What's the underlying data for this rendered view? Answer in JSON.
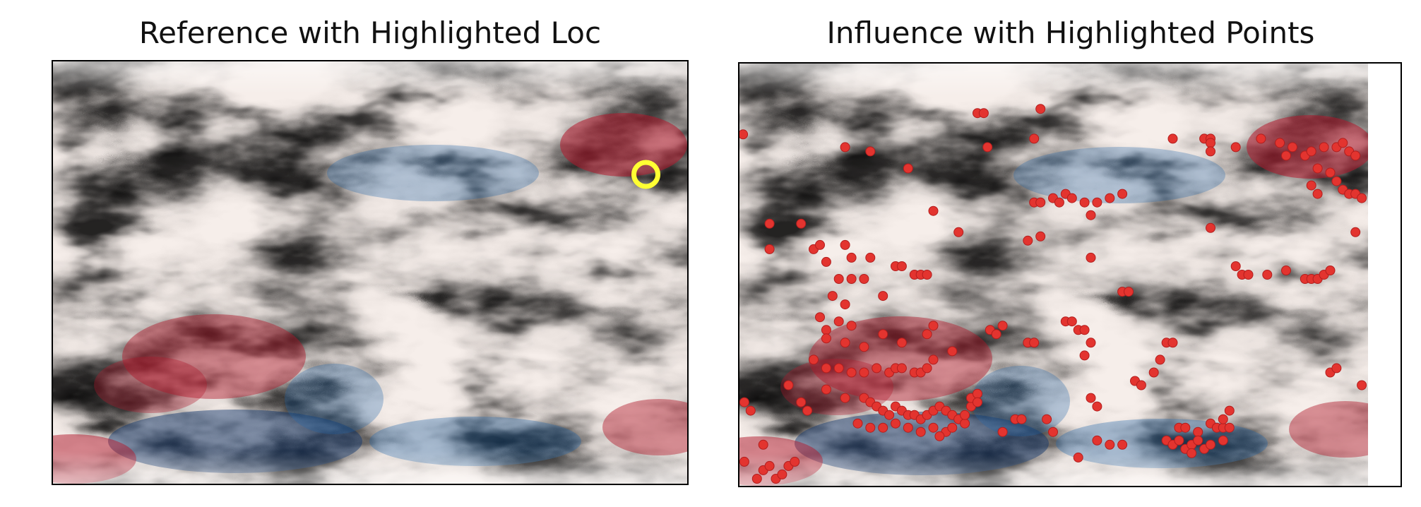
{
  "chart_data": [
    {
      "type": "heatmap",
      "title": "Reference with Highlighted Loc",
      "colormap": "RdBu_r",
      "axes_visible": false,
      "grid": false,
      "highlight": {
        "marker": "ring",
        "color": "#ffff33",
        "x": 0.935,
        "y": 0.27
      }
    },
    {
      "type": "scatter",
      "title": "Influence with Highlighted Points",
      "background": "heatmap RdBu_r",
      "axes_visible": false,
      "grid": false,
      "point_color": "#e3342f",
      "points": [
        [
          0.008,
          0.17
        ],
        [
          0.17,
          0.2
        ],
        [
          0.21,
          0.21
        ],
        [
          0.38,
          0.12
        ],
        [
          0.39,
          0.12
        ],
        [
          0.396,
          0.2
        ],
        [
          0.48,
          0.11
        ],
        [
          0.47,
          0.18
        ],
        [
          0.27,
          0.25
        ],
        [
          0.69,
          0.18
        ],
        [
          0.74,
          0.18
        ],
        [
          0.75,
          0.18
        ],
        [
          0.75,
          0.19
        ],
        [
          0.75,
          0.21
        ],
        [
          0.79,
          0.2
        ],
        [
          0.83,
          0.18
        ],
        [
          0.86,
          0.19
        ],
        [
          0.87,
          0.22
        ],
        [
          0.88,
          0.2
        ],
        [
          0.9,
          0.22
        ],
        [
          0.91,
          0.21
        ],
        [
          0.93,
          0.2
        ],
        [
          0.95,
          0.2
        ],
        [
          0.96,
          0.19
        ],
        [
          0.97,
          0.21
        ],
        [
          0.98,
          0.22
        ],
        [
          0.92,
          0.25
        ],
        [
          0.94,
          0.26
        ],
        [
          0.95,
          0.28
        ],
        [
          0.96,
          0.3
        ],
        [
          0.97,
          0.31
        ],
        [
          0.98,
          0.31
        ],
        [
          0.99,
          0.32
        ],
        [
          0.91,
          0.29
        ],
        [
          0.92,
          0.31
        ],
        [
          0.98,
          0.4
        ],
        [
          0.1,
          0.38
        ],
        [
          0.31,
          0.35
        ],
        [
          0.35,
          0.4
        ],
        [
          0.05,
          0.38
        ],
        [
          0.47,
          0.33
        ],
        [
          0.48,
          0.33
        ],
        [
          0.5,
          0.32
        ],
        [
          0.51,
          0.33
        ],
        [
          0.52,
          0.31
        ],
        [
          0.53,
          0.32
        ],
        [
          0.55,
          0.33
        ],
        [
          0.57,
          0.33
        ],
        [
          0.59,
          0.32
        ],
        [
          0.61,
          0.31
        ],
        [
          0.56,
          0.36
        ],
        [
          0.48,
          0.41
        ],
        [
          0.46,
          0.42
        ],
        [
          0.56,
          0.46
        ],
        [
          0.75,
          0.39
        ],
        [
          0.05,
          0.44
        ],
        [
          0.12,
          0.44
        ],
        [
          0.13,
          0.43
        ],
        [
          0.17,
          0.43
        ],
        [
          0.18,
          0.46
        ],
        [
          0.21,
          0.46
        ],
        [
          0.25,
          0.48
        ],
        [
          0.26,
          0.48
        ],
        [
          0.28,
          0.5
        ],
        [
          0.29,
          0.5
        ],
        [
          0.3,
          0.5
        ],
        [
          0.14,
          0.47
        ],
        [
          0.16,
          0.51
        ],
        [
          0.18,
          0.51
        ],
        [
          0.2,
          0.51
        ],
        [
          0.15,
          0.55
        ],
        [
          0.17,
          0.57
        ],
        [
          0.23,
          0.55
        ],
        [
          0.61,
          0.54
        ],
        [
          0.62,
          0.54
        ],
        [
          0.79,
          0.48
        ],
        [
          0.8,
          0.5
        ],
        [
          0.81,
          0.5
        ],
        [
          0.84,
          0.5
        ],
        [
          0.87,
          0.49
        ],
        [
          0.9,
          0.51
        ],
        [
          0.91,
          0.51
        ],
        [
          0.92,
          0.51
        ],
        [
          0.93,
          0.5
        ],
        [
          0.94,
          0.49
        ],
        [
          0.13,
          0.6
        ],
        [
          0.14,
          0.63
        ],
        [
          0.16,
          0.61
        ],
        [
          0.18,
          0.62
        ],
        [
          0.14,
          0.65
        ],
        [
          0.17,
          0.66
        ],
        [
          0.2,
          0.67
        ],
        [
          0.23,
          0.64
        ],
        [
          0.26,
          0.66
        ],
        [
          0.3,
          0.64
        ],
        [
          0.31,
          0.62
        ],
        [
          0.12,
          0.7
        ],
        [
          0.14,
          0.72
        ],
        [
          0.16,
          0.72
        ],
        [
          0.18,
          0.73
        ],
        [
          0.2,
          0.73
        ],
        [
          0.22,
          0.72
        ],
        [
          0.24,
          0.73
        ],
        [
          0.25,
          0.72
        ],
        [
          0.26,
          0.72
        ],
        [
          0.28,
          0.73
        ],
        [
          0.29,
          0.73
        ],
        [
          0.3,
          0.72
        ],
        [
          0.31,
          0.7
        ],
        [
          0.4,
          0.63
        ],
        [
          0.41,
          0.64
        ],
        [
          0.42,
          0.62
        ],
        [
          0.46,
          0.66
        ],
        [
          0.47,
          0.66
        ],
        [
          0.52,
          0.61
        ],
        [
          0.53,
          0.61
        ],
        [
          0.54,
          0.63
        ],
        [
          0.55,
          0.63
        ],
        [
          0.56,
          0.66
        ],
        [
          0.55,
          0.69
        ],
        [
          0.34,
          0.68
        ],
        [
          0.68,
          0.66
        ],
        [
          0.69,
          0.66
        ],
        [
          0.67,
          0.7
        ],
        [
          0.66,
          0.73
        ],
        [
          0.63,
          0.75
        ],
        [
          0.64,
          0.76
        ],
        [
          0.56,
          0.79
        ],
        [
          0.57,
          0.81
        ],
        [
          0.94,
          0.73
        ],
        [
          0.95,
          0.72
        ],
        [
          0.99,
          0.76
        ],
        [
          0.01,
          0.8
        ],
        [
          0.02,
          0.82
        ],
        [
          0.1,
          0.8
        ],
        [
          0.11,
          0.82
        ],
        [
          0.14,
          0.77
        ],
        [
          0.17,
          0.79
        ],
        [
          0.08,
          0.76
        ],
        [
          0.2,
          0.79
        ],
        [
          0.21,
          0.8
        ],
        [
          0.22,
          0.81
        ],
        [
          0.23,
          0.82
        ],
        [
          0.24,
          0.83
        ],
        [
          0.25,
          0.81
        ],
        [
          0.26,
          0.82
        ],
        [
          0.27,
          0.83
        ],
        [
          0.28,
          0.83
        ],
        [
          0.29,
          0.84
        ],
        [
          0.3,
          0.83
        ],
        [
          0.31,
          0.82
        ],
        [
          0.32,
          0.81
        ],
        [
          0.33,
          0.82
        ],
        [
          0.34,
          0.83
        ],
        [
          0.35,
          0.84
        ],
        [
          0.36,
          0.85
        ],
        [
          0.36,
          0.83
        ],
        [
          0.37,
          0.81
        ],
        [
          0.37,
          0.79
        ],
        [
          0.38,
          0.78
        ],
        [
          0.38,
          0.8
        ],
        [
          0.19,
          0.85
        ],
        [
          0.21,
          0.86
        ],
        [
          0.23,
          0.86
        ],
        [
          0.25,
          0.85
        ],
        [
          0.27,
          0.86
        ],
        [
          0.29,
          0.87
        ],
        [
          0.31,
          0.86
        ],
        [
          0.33,
          0.87
        ],
        [
          0.34,
          0.86
        ],
        [
          0.32,
          0.88
        ],
        [
          0.44,
          0.84
        ],
        [
          0.45,
          0.84
        ],
        [
          0.5,
          0.87
        ],
        [
          0.49,
          0.84
        ],
        [
          0.42,
          0.87
        ],
        [
          0.7,
          0.86
        ],
        [
          0.71,
          0.86
        ],
        [
          0.73,
          0.87
        ],
        [
          0.75,
          0.85
        ],
        [
          0.76,
          0.86
        ],
        [
          0.77,
          0.86
        ],
        [
          0.78,
          0.86
        ],
        [
          0.77,
          0.84
        ],
        [
          0.78,
          0.82
        ],
        [
          0.68,
          0.89
        ],
        [
          0.69,
          0.9
        ],
        [
          0.7,
          0.89
        ],
        [
          0.71,
          0.91
        ],
        [
          0.72,
          0.9
        ],
        [
          0.73,
          0.89
        ],
        [
          0.74,
          0.91
        ],
        [
          0.75,
          0.9
        ],
        [
          0.77,
          0.89
        ],
        [
          0.72,
          0.92
        ],
        [
          0.57,
          0.89
        ],
        [
          0.59,
          0.9
        ],
        [
          0.61,
          0.9
        ],
        [
          0.54,
          0.93
        ],
        [
          0.01,
          0.94
        ],
        [
          0.03,
          0.98
        ],
        [
          0.04,
          0.96
        ],
        [
          0.05,
          0.95
        ],
        [
          0.06,
          0.98
        ],
        [
          0.07,
          0.97
        ],
        [
          0.08,
          0.95
        ],
        [
          0.09,
          0.94
        ],
        [
          0.04,
          0.9
        ]
      ]
    }
  ]
}
